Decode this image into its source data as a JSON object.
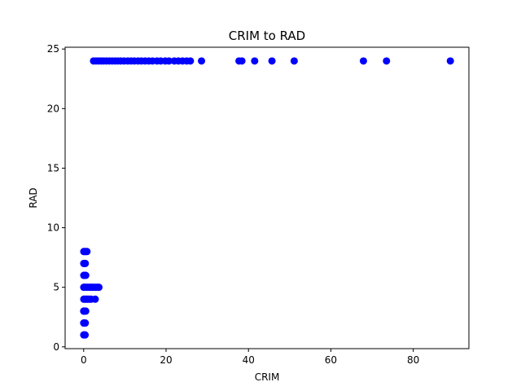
{
  "chart_data": {
    "type": "scatter",
    "title": "CRIM to RAD",
    "xlabel": "CRIM",
    "ylabel": "RAD",
    "xlim": [
      -4.5,
      93.5
    ],
    "ylim": [
      -0.15,
      25.15
    ],
    "xticks": [
      0,
      20,
      40,
      60,
      80
    ],
    "yticks": [
      0,
      5,
      10,
      15,
      20,
      25
    ],
    "grid": false,
    "color": "#0000ff",
    "points": [
      {
        "x": 0.02,
        "y": 1
      },
      {
        "x": 0.15,
        "y": 1
      },
      {
        "x": 0.35,
        "y": 1
      },
      {
        "x": 0.01,
        "y": 2
      },
      {
        "x": 0.1,
        "y": 2
      },
      {
        "x": 0.4,
        "y": 2
      },
      {
        "x": 0.0,
        "y": 3
      },
      {
        "x": 0.05,
        "y": 3
      },
      {
        "x": 0.2,
        "y": 3
      },
      {
        "x": 0.5,
        "y": 3
      },
      {
        "x": 0.03,
        "y": 4
      },
      {
        "x": 0.2,
        "y": 4
      },
      {
        "x": 0.5,
        "y": 4
      },
      {
        "x": 0.8,
        "y": 4
      },
      {
        "x": 1.1,
        "y": 4
      },
      {
        "x": 1.4,
        "y": 4
      },
      {
        "x": 1.8,
        "y": 4
      },
      {
        "x": 2.8,
        "y": 4
      },
      {
        "x": 0.02,
        "y": 5
      },
      {
        "x": 0.2,
        "y": 5
      },
      {
        "x": 0.5,
        "y": 5
      },
      {
        "x": 0.9,
        "y": 5
      },
      {
        "x": 1.3,
        "y": 5
      },
      {
        "x": 1.7,
        "y": 5
      },
      {
        "x": 2.0,
        "y": 5
      },
      {
        "x": 2.4,
        "y": 5
      },
      {
        "x": 2.9,
        "y": 5
      },
      {
        "x": 3.3,
        "y": 5
      },
      {
        "x": 3.7,
        "y": 5
      },
      {
        "x": 0.03,
        "y": 6
      },
      {
        "x": 0.2,
        "y": 6
      },
      {
        "x": 0.5,
        "y": 6
      },
      {
        "x": 0.02,
        "y": 7
      },
      {
        "x": 0.15,
        "y": 7
      },
      {
        "x": 0.4,
        "y": 7
      },
      {
        "x": 0.03,
        "y": 8
      },
      {
        "x": 0.2,
        "y": 8
      },
      {
        "x": 0.5,
        "y": 8
      },
      {
        "x": 0.8,
        "y": 8
      },
      {
        "x": 2.4,
        "y": 24
      },
      {
        "x": 3.0,
        "y": 24
      },
      {
        "x": 3.6,
        "y": 24
      },
      {
        "x": 4.2,
        "y": 24
      },
      {
        "x": 4.8,
        "y": 24
      },
      {
        "x": 5.5,
        "y": 24
      },
      {
        "x": 6.2,
        "y": 24
      },
      {
        "x": 6.9,
        "y": 24
      },
      {
        "x": 7.6,
        "y": 24
      },
      {
        "x": 8.3,
        "y": 24
      },
      {
        "x": 9.0,
        "y": 24
      },
      {
        "x": 9.8,
        "y": 24
      },
      {
        "x": 10.7,
        "y": 24
      },
      {
        "x": 11.5,
        "y": 24
      },
      {
        "x": 12.3,
        "y": 24
      },
      {
        "x": 13.2,
        "y": 24
      },
      {
        "x": 14.0,
        "y": 24
      },
      {
        "x": 14.9,
        "y": 24
      },
      {
        "x": 15.8,
        "y": 24
      },
      {
        "x": 16.7,
        "y": 24
      },
      {
        "x": 17.8,
        "y": 24
      },
      {
        "x": 18.7,
        "y": 24
      },
      {
        "x": 19.8,
        "y": 24
      },
      {
        "x": 20.7,
        "y": 24
      },
      {
        "x": 22.0,
        "y": 24
      },
      {
        "x": 23.0,
        "y": 24
      },
      {
        "x": 24.0,
        "y": 24
      },
      {
        "x": 25.0,
        "y": 24
      },
      {
        "x": 25.9,
        "y": 24
      },
      {
        "x": 28.6,
        "y": 24
      },
      {
        "x": 37.7,
        "y": 24
      },
      {
        "x": 38.4,
        "y": 24
      },
      {
        "x": 41.5,
        "y": 24
      },
      {
        "x": 45.7,
        "y": 24
      },
      {
        "x": 51.1,
        "y": 24
      },
      {
        "x": 67.9,
        "y": 24
      },
      {
        "x": 73.5,
        "y": 24
      },
      {
        "x": 89.0,
        "y": 24
      }
    ]
  }
}
